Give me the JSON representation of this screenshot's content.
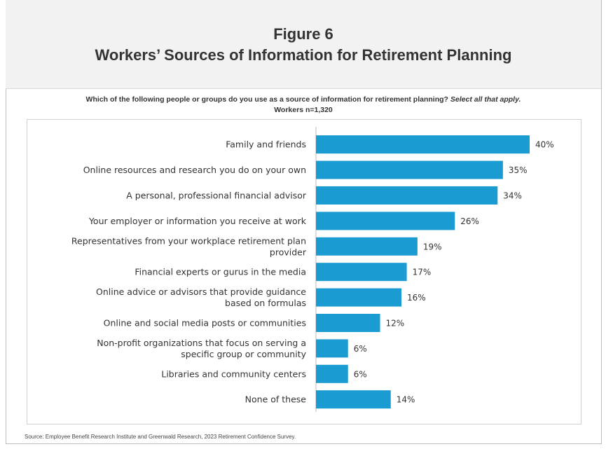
{
  "header": {
    "figure_label": "Figure 6",
    "title": "Workers’ Sources of Information for Retirement Planning"
  },
  "question": {
    "text": "Which of the following people or groups do you use as a source of information for retirement planning?",
    "emphasis": "Select all that apply.",
    "sample": "Workers n=1,320"
  },
  "source": "Source: Employee Benefit Research Institute and Greenwald Research, 2023 Retirement Confidence Survey.",
  "colors": {
    "bar": "#1a9bd1",
    "axis": "#bfbfbf"
  },
  "chart_data": {
    "type": "bar",
    "orientation": "horizontal",
    "title": "",
    "xlabel": "",
    "ylabel": "",
    "xlim": [
      0,
      40
    ],
    "grid": false,
    "categories": [
      [
        "Family and friends"
      ],
      [
        "Online resources and research you do on your own"
      ],
      [
        "A personal, professional financial advisor"
      ],
      [
        "Your employer or information you receive at work"
      ],
      [
        "Representatives from your workplace retirement plan",
        "provider"
      ],
      [
        "Financial experts or gurus in the media"
      ],
      [
        "Online advice or advisors that provide guidance",
        "based on formulas"
      ],
      [
        "Online and social media posts or communities"
      ],
      [
        "Non-profit organizations that focus on serving a",
        "specific group or community"
      ],
      [
        "Libraries and community centers"
      ],
      [
        "None of these"
      ]
    ],
    "values": [
      40,
      35,
      34,
      26,
      19,
      17,
      16,
      12,
      6,
      6,
      14
    ],
    "data_labels": [
      "40%",
      "35%",
      "34%",
      "26%",
      "19%",
      "17%",
      "16%",
      "12%",
      "6%",
      "6%",
      "14%"
    ]
  }
}
